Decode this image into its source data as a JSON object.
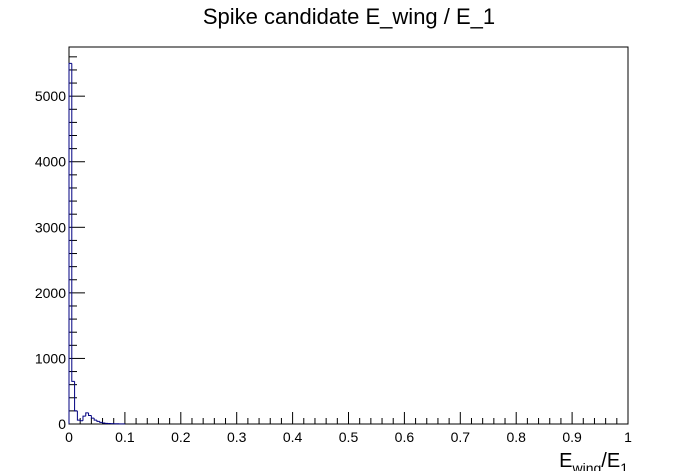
{
  "chart_data": {
    "type": "bar",
    "title": "Spike candidate E_wing / E_1",
    "xlabel_main": "E",
    "xlabel_sub": "wing",
    "xlabel_sep": "/E",
    "xlabel_sub2": "1",
    "ylabel": "",
    "xlim": [
      0,
      1
    ],
    "ylim": [
      0,
      5750
    ],
    "x_ticks": [
      0,
      0.1,
      0.2,
      0.3,
      0.4,
      0.5,
      0.6,
      0.7,
      0.8,
      0.9,
      1
    ],
    "x_tick_labels": [
      "0",
      "0.1",
      "0.2",
      "0.3",
      "0.4",
      "0.5",
      "0.6",
      "0.7",
      "0.8",
      "0.9",
      "1"
    ],
    "y_ticks": [
      0,
      1000,
      2000,
      3000,
      4000,
      5000
    ],
    "y_tick_labels": [
      "0",
      "1000",
      "2000",
      "3000",
      "4000",
      "5000"
    ],
    "bin_width": 0.005,
    "bin_start": 0,
    "values": [
      5500,
      650,
      200,
      60,
      50,
      120,
      170,
      130,
      90,
      60,
      40,
      25,
      15,
      10,
      8,
      5,
      4,
      3,
      2,
      1
    ],
    "line_color": "#000080",
    "grid": false
  }
}
